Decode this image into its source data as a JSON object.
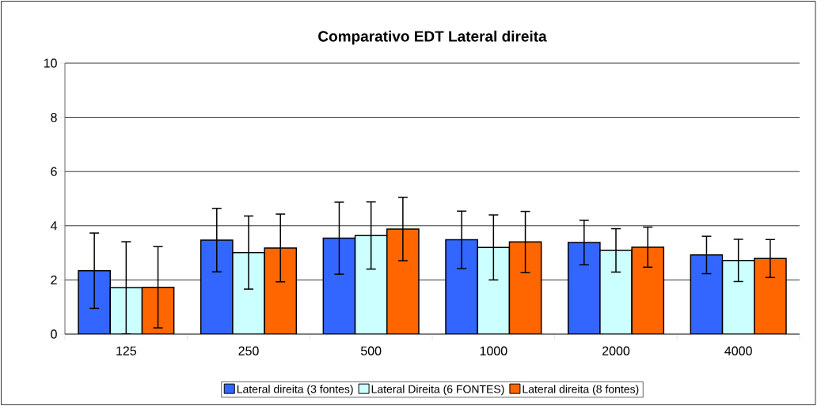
{
  "chart_data": {
    "type": "bar",
    "title": "Comparativo EDT Lateral direita",
    "categories": [
      "125",
      "250",
      "500",
      "1000",
      "2000",
      "4000"
    ],
    "series": [
      {
        "name": "Lateral direita (3 fontes)",
        "color": "#3366ff",
        "values": [
          2.34,
          3.47,
          3.54,
          3.48,
          3.38,
          2.92
        ],
        "errors": [
          1.39,
          1.17,
          1.33,
          1.06,
          0.82,
          0.69
        ]
      },
      {
        "name": "Lateral Direita (6 FONTES)",
        "color": "#ccffff",
        "values": [
          1.71,
          3.01,
          3.64,
          3.2,
          3.09,
          2.72
        ],
        "errors": [
          1.7,
          1.35,
          1.24,
          1.2,
          0.8,
          0.78
        ]
      },
      {
        "name": "Lateral direita (8 fontes)",
        "color": "#ff6600",
        "values": [
          1.73,
          3.18,
          3.88,
          3.4,
          3.21,
          2.79
        ],
        "errors": [
          1.5,
          1.25,
          1.17,
          1.13,
          0.74,
          0.7
        ]
      }
    ],
    "ylim": [
      0,
      10
    ],
    "yticks": [
      0,
      2,
      4,
      6,
      8,
      10
    ],
    "grid": "y",
    "legend": "bottom"
  }
}
